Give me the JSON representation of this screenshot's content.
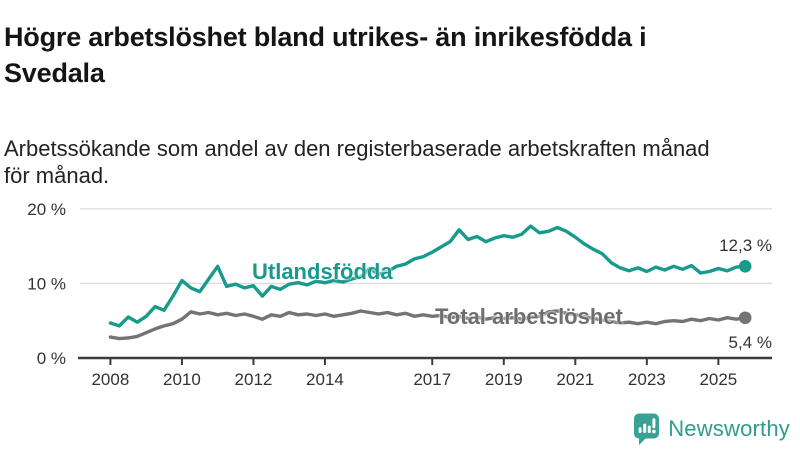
{
  "header": {
    "title_line1": "Högre arbetslöshet bland utrikes- än inrikesfödda i",
    "title_line2": "Svedala",
    "subtitle_line1": "Arbetssökande som andel av den registerbaserade arbetskraften månad",
    "subtitle_line2": "för månad."
  },
  "chart_data": {
    "type": "line",
    "title": "Högre arbetslöshet bland utrikes- än inrikesfödda i Svedala",
    "subtitle": "Arbetssökande som andel av den registerbaserade arbetskraften månad för månad.",
    "x_unit": "year (quarterly estimates of monthly series)",
    "x_start": 2008.0,
    "x_step": 0.25,
    "xlim": [
      2007.15,
      2026.5
    ],
    "ylim": [
      0,
      22
    ],
    "grid": "horizontal-light",
    "legend_position": "inline-labels",
    "x_ticks": [
      2008,
      2010,
      2012,
      2014,
      2017,
      2019,
      2021,
      2023,
      2025
    ],
    "y_ticks": [
      {
        "value": 0,
        "label": "0 %"
      },
      {
        "value": 10,
        "label": "10 %"
      },
      {
        "value": 20,
        "label": "20 %"
      }
    ],
    "series": [
      {
        "name": "Utlandsfödda",
        "color": "#189A8C",
        "label_color": "#189A8C",
        "end_value": 12.3,
        "end_value_label": "12,3 %",
        "values": [
          4.7,
          4.3,
          5.5,
          4.8,
          5.6,
          6.9,
          6.4,
          8.3,
          10.4,
          9.4,
          8.9,
          10.6,
          12.3,
          9.6,
          9.9,
          9.4,
          9.7,
          8.3,
          9.6,
          9.2,
          9.9,
          10.1,
          9.8,
          10.3,
          10.1,
          10.4,
          10.2,
          10.6,
          10.9,
          12.0,
          11.2,
          11.6,
          12.3,
          12.6,
          13.3,
          13.6,
          14.2,
          14.9,
          15.6,
          17.2,
          15.9,
          16.3,
          15.6,
          16.1,
          16.4,
          16.2,
          16.6,
          17.7,
          16.8,
          17.0,
          17.5,
          17.0,
          16.2,
          15.3,
          14.6,
          14.0,
          12.8,
          12.1,
          11.7,
          12.1,
          11.6,
          12.2,
          11.8,
          12.3,
          11.9,
          12.4,
          11.4,
          11.6,
          12.0,
          11.7,
          12.2,
          12.3
        ]
      },
      {
        "name": "Total arbetslöshet",
        "color": "#747476",
        "label_color": "#6E6E70",
        "end_value": 5.4,
        "end_value_label": "5,4 %",
        "values": [
          2.8,
          2.6,
          2.7,
          2.9,
          3.4,
          3.9,
          4.3,
          4.6,
          5.2,
          6.2,
          5.9,
          6.1,
          5.8,
          6.0,
          5.7,
          5.9,
          5.6,
          5.2,
          5.8,
          5.6,
          6.1,
          5.8,
          5.9,
          5.7,
          5.9,
          5.6,
          5.8,
          6.0,
          6.3,
          6.1,
          5.9,
          6.1,
          5.8,
          6.0,
          5.6,
          5.8,
          5.6,
          5.7,
          5.4,
          5.6,
          5.3,
          5.5,
          5.2,
          5.4,
          5.3,
          5.4,
          5.2,
          5.5,
          5.6,
          6.2,
          6.3,
          6.0,
          5.8,
          5.6,
          5.3,
          5.1,
          4.9,
          4.7,
          4.8,
          4.6,
          4.8,
          4.6,
          4.9,
          5.0,
          4.9,
          5.2,
          5.0,
          5.3,
          5.1,
          5.4,
          5.2,
          5.4
        ]
      }
    ]
  },
  "style": {
    "axis_color": "#3C3C3C",
    "gridline_color": "#DCDCDC",
    "tick_label_color": "#333333",
    "background": "#FFFFFF"
  },
  "footer": {
    "brand": "Newsworthy",
    "brand_color": "#2E9C8E",
    "logo_icon": "bar-chart-speech-bubble-icon"
  }
}
